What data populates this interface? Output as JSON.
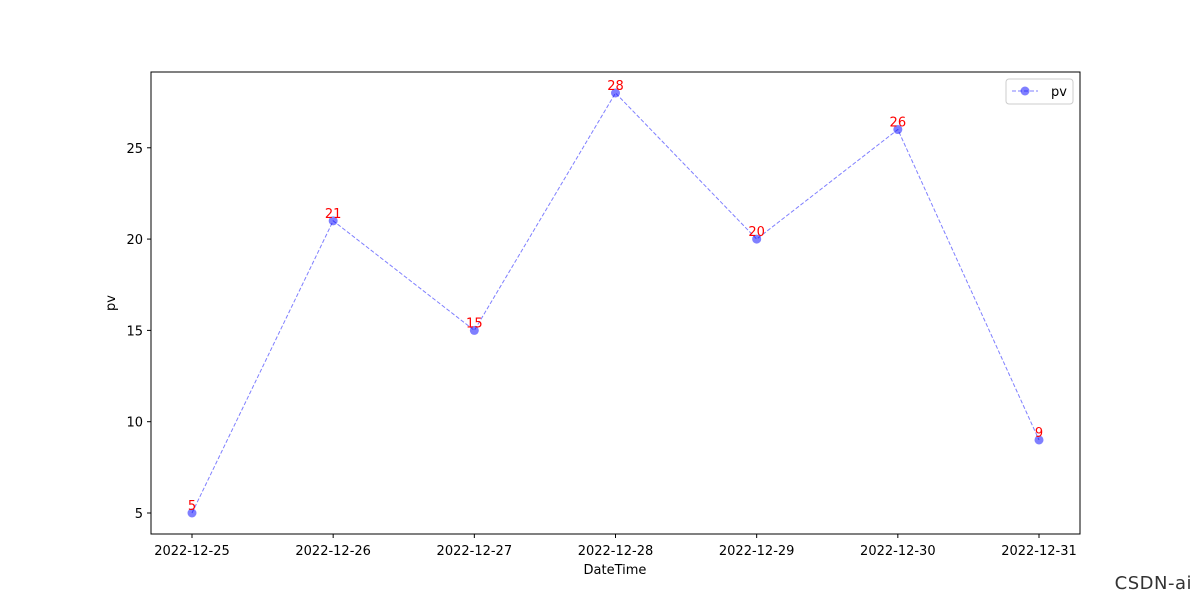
{
  "chart_data": {
    "type": "line",
    "xlabel": "DateTime",
    "ylabel": "pv",
    "categories": [
      "2022-12-25",
      "2022-12-26",
      "2022-12-27",
      "2022-12-28",
      "2022-12-29",
      "2022-12-30",
      "2022-12-31"
    ],
    "series": [
      {
        "name": "pv",
        "values": [
          5,
          21,
          15,
          28,
          20,
          26,
          9
        ],
        "color": "#0000ff",
        "label_color": "#ff0000",
        "line_style": "dashed",
        "marker": "circle"
      }
    ],
    "yticks": [
      5,
      10,
      15,
      20,
      25
    ],
    "ylim": [
      3.85,
      29.15
    ],
    "grid": false,
    "legend": "top-right"
  },
  "watermark": "CSDN-ai"
}
